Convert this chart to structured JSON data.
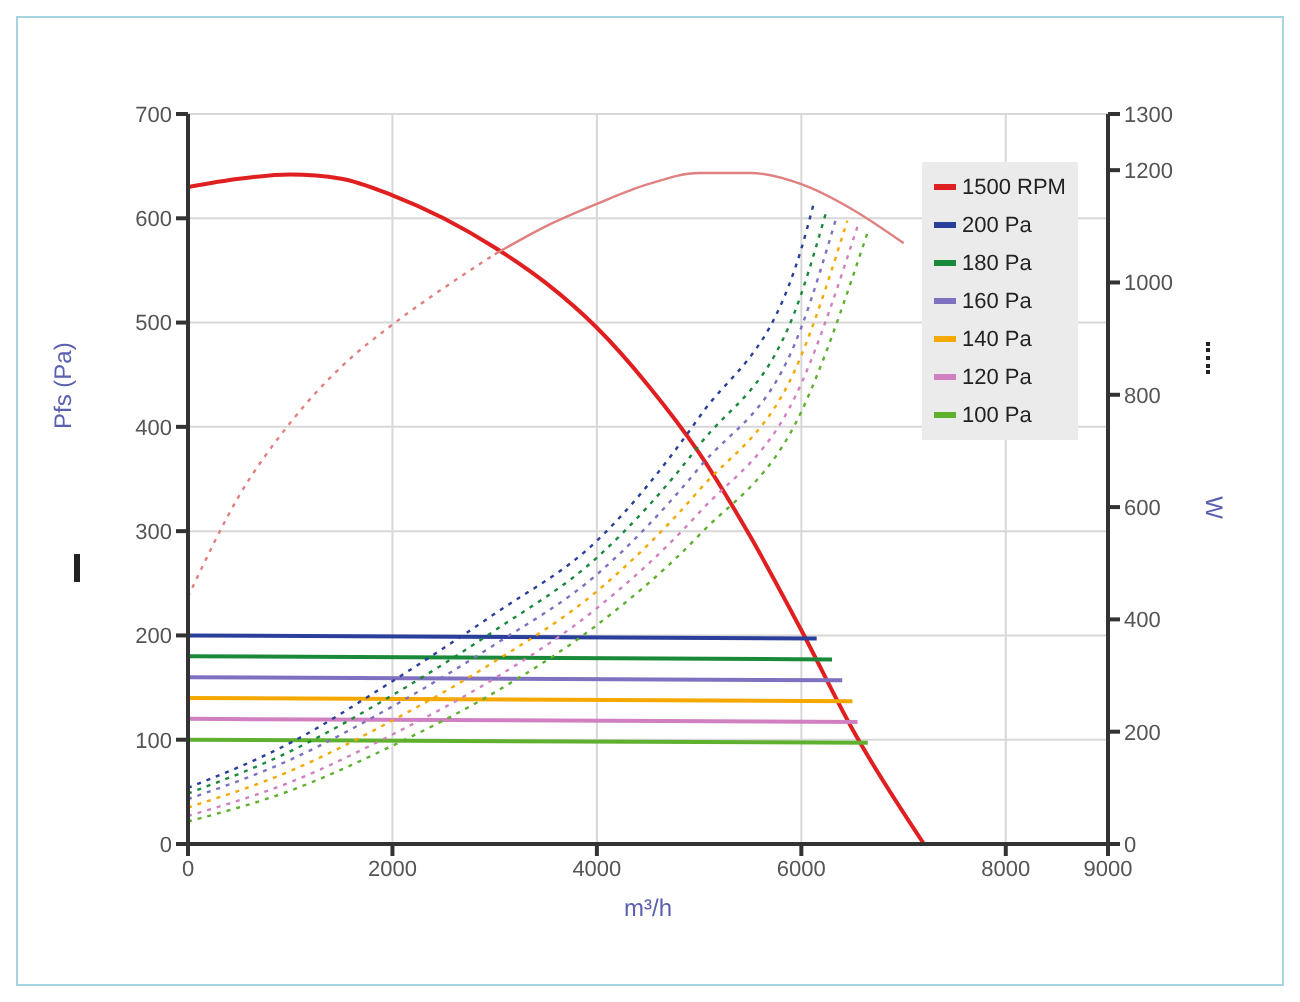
{
  "chart_data": {
    "type": "line",
    "xlabel": "m³/h",
    "ylabel": "Pfs (Pa)",
    "y2label": "W",
    "xlim": [
      0,
      9000
    ],
    "xticks": [
      0,
      2000,
      4000,
      6000,
      8000,
      9000
    ],
    "ylim": [
      0,
      700
    ],
    "yticks": [
      0,
      100,
      200,
      300,
      400,
      500,
      600,
      700
    ],
    "y2lim": [
      0,
      1300
    ],
    "y2ticks": [
      0,
      200,
      400,
      600,
      800,
      1000,
      1200,
      1300
    ],
    "grid": true,
    "legend": "top right",
    "marker": "none",
    "series": [
      {
        "name": "1500 RPM",
        "color": "#e02020",
        "line_style": "solid",
        "x": [
          0,
          500,
          1000,
          1500,
          2000,
          2500,
          3000,
          3500,
          4000,
          4500,
          5000,
          5500,
          6000,
          6500,
          7200
        ],
        "values": [
          630,
          638,
          642,
          638,
          622,
          600,
          572,
          538,
          495,
          440,
          375,
          295,
          205,
          110,
          0
        ]
      },
      {
        "name": "200 Pa",
        "color": "#2a3f9a",
        "line_style": "solid",
        "x": [
          0,
          6150
        ],
        "values": [
          200,
          197
        ]
      },
      {
        "name": "180 Pa",
        "color": "#1a8a3a",
        "line_style": "solid",
        "x": [
          0,
          6300
        ],
        "values": [
          180,
          177
        ]
      },
      {
        "name": "160 Pa",
        "color": "#8070c0",
        "line_style": "solid",
        "x": [
          0,
          6400
        ],
        "values": [
          160,
          157
        ]
      },
      {
        "name": "140 Pa",
        "color": "#f5a800",
        "line_style": "solid",
        "x": [
          0,
          6500
        ],
        "values": [
          140,
          137
        ]
      },
      {
        "name": "120 Pa",
        "color": "#d080c0",
        "line_style": "solid",
        "x": [
          0,
          6550
        ],
        "values": [
          120,
          117
        ]
      },
      {
        "name": "100 Pa",
        "color": "#60b030",
        "line_style": "solid",
        "x": [
          0,
          6650
        ],
        "values": [
          100,
          97
        ]
      },
      {
        "color": "#e08080",
        "line_style": "dotted",
        "axis": "y2",
        "x": [
          0,
          500,
          1000,
          1500,
          2000,
          2500,
          3000
        ],
        "values": [
          440,
          620,
          750,
          850,
          925,
          990,
          1050
        ]
      },
      {
        "color": "#e08080",
        "line_style": "solid",
        "axis": "y2",
        "x": [
          3000,
          3500,
          4000,
          4500,
          5000,
          5500,
          6000,
          6500,
          7000
        ],
        "values": [
          1050,
          1100,
          1140,
          1175,
          1195,
          1195,
          1175,
          1130,
          1070
        ]
      },
      {
        "color": "#2a3f9a",
        "line_style": "dotted",
        "axis": "y2",
        "x": [
          0,
          1000,
          2000,
          3000,
          4000,
          5000,
          6000,
          6120
        ],
        "values": [
          100,
          180,
          290,
          410,
          540,
          760,
          1060,
          1140
        ]
      },
      {
        "color": "#1a8a3a",
        "line_style": "dotted",
        "axis": "y2",
        "x": [
          0,
          1000,
          2000,
          3000,
          4000,
          5000,
          6000,
          6250
        ],
        "values": [
          90,
          165,
          265,
          380,
          510,
          710,
          980,
          1130
        ]
      },
      {
        "color": "#8070c0",
        "line_style": "dotted",
        "axis": "y2",
        "x": [
          0,
          1000,
          2000,
          3000,
          4000,
          5000,
          6000,
          6350
        ],
        "values": [
          80,
          150,
          245,
          355,
          480,
          670,
          920,
          1120
        ]
      },
      {
        "color": "#f5a800",
        "line_style": "dotted",
        "axis": "y2",
        "x": [
          0,
          1000,
          2000,
          3000,
          4000,
          5000,
          6000,
          6450
        ],
        "values": [
          65,
          130,
          220,
          325,
          450,
          630,
          870,
          1110
        ]
      },
      {
        "color": "#d080c0",
        "line_style": "dotted",
        "axis": "y2",
        "x": [
          0,
          1000,
          2000,
          3000,
          4000,
          5000,
          6000,
          6550
        ],
        "values": [
          50,
          110,
          195,
          295,
          420,
          590,
          820,
          1100
        ]
      },
      {
        "color": "#60b030",
        "line_style": "dotted",
        "axis": "y2",
        "x": [
          0,
          1000,
          2000,
          3000,
          4000,
          5000,
          6000,
          6650
        ],
        "values": [
          40,
          95,
          175,
          270,
          390,
          550,
          770,
          1090
        ]
      }
    ]
  }
}
